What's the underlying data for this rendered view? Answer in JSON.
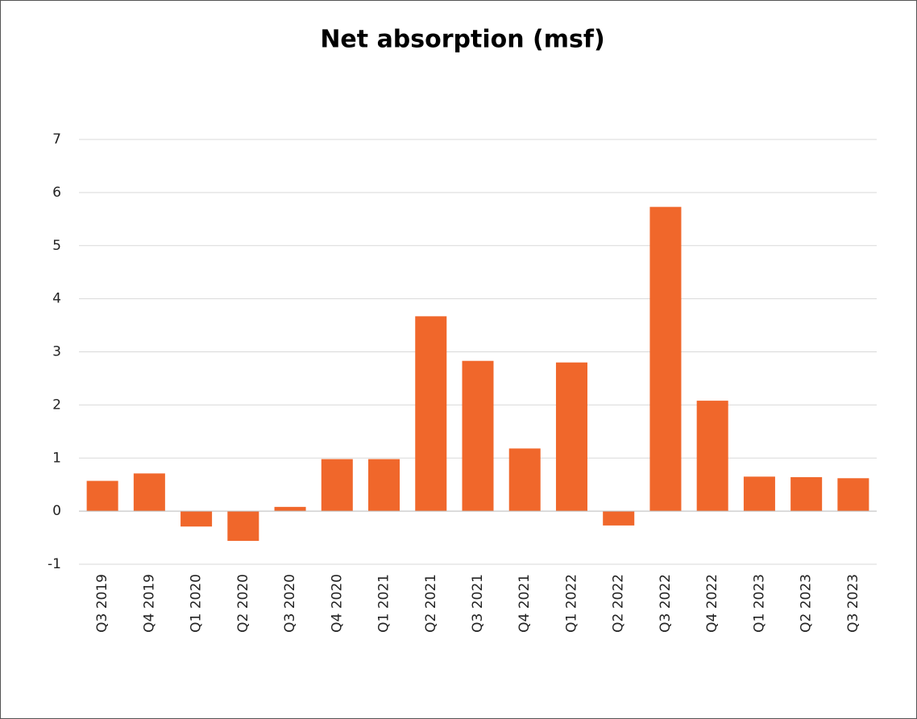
{
  "chart_data": {
    "type": "bar",
    "title": "Net absorption (msf)",
    "categories": [
      "Q3 2019",
      "Q4 2019",
      "Q1 2020",
      "Q2 2020",
      "Q3 2020",
      "Q4 2020",
      "Q1 2021",
      "Q2 2021",
      "Q3 2021",
      "Q4 2021",
      "Q1 2022",
      "Q2 2022",
      "Q3 2022",
      "Q4 2022",
      "Q1 2023",
      "Q2 2023",
      "Q3 2023"
    ],
    "values": [
      0.57,
      0.71,
      -0.29,
      -0.56,
      0.08,
      0.98,
      0.98,
      3.67,
      2.83,
      1.18,
      2.8,
      -0.27,
      5.73,
      2.08,
      0.65,
      0.64,
      0.62
    ],
    "color": "#f0672b",
    "ylim": [
      -1,
      7
    ],
    "yticks": [
      -1,
      0,
      1,
      2,
      3,
      4,
      5,
      6,
      7
    ],
    "grid": true
  }
}
